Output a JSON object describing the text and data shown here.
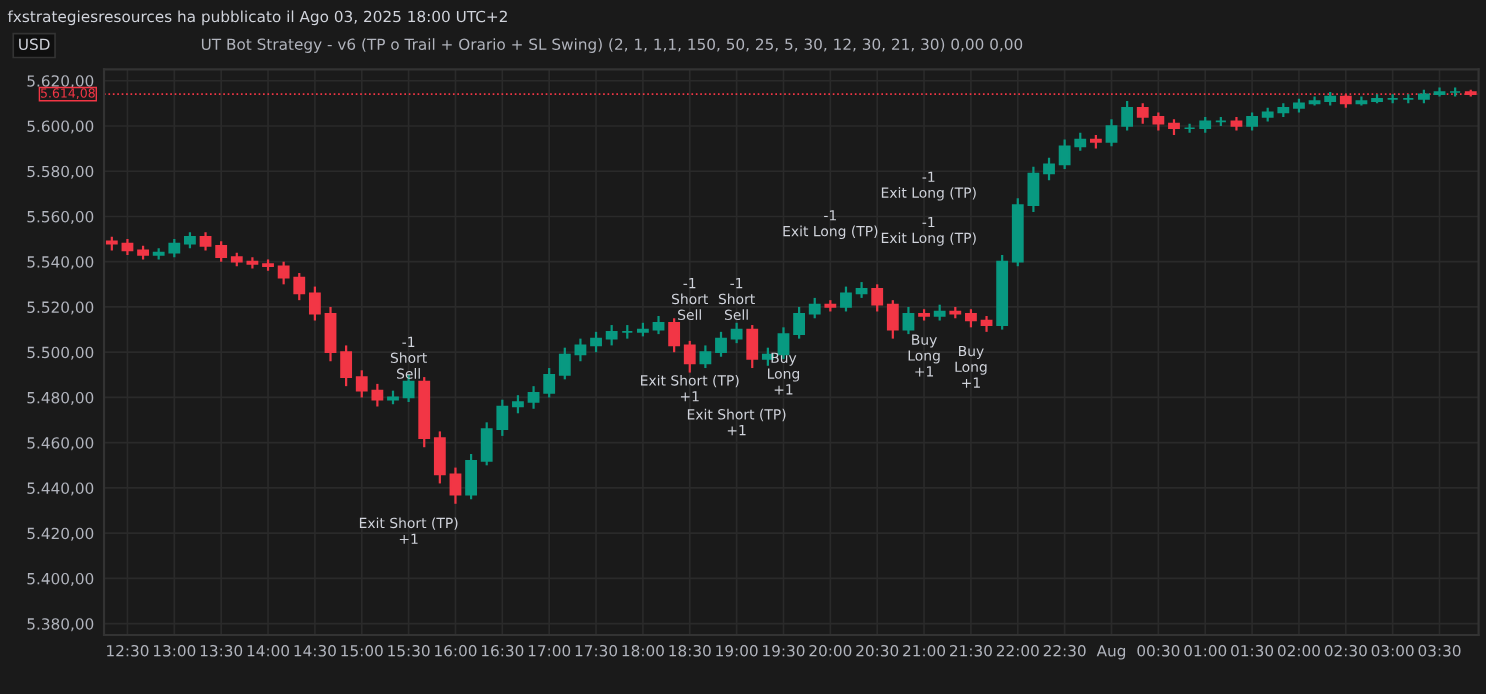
{
  "chart_data": {
    "type": "candlestick",
    "title": "UT Bot Strategy - v6 (TP o Trail + Orario + SL Swing) (2, 1, 1,1, 150, 50, 25, 5, 30, 12, 30, 21, 30) 0,00 0,00",
    "categories": [
      null,
      "12:30",
      null,
      null,
      "13:00",
      null,
      null,
      "13:30",
      null,
      null,
      "14:00",
      null,
      null,
      "14:30",
      null,
      null,
      "15:00",
      null,
      null,
      "15:30",
      null,
      null,
      "16:00",
      null,
      null,
      "16:30",
      null,
      null,
      "17:00",
      null,
      null,
      "17:30",
      null,
      null,
      "18:00",
      null,
      null,
      "18:30",
      null,
      null,
      "19:00",
      null,
      null,
      "19:30",
      null,
      null,
      "20:00",
      null,
      null,
      "20:30",
      null,
      null,
      "21:00",
      null,
      null,
      "21:30",
      null,
      null,
      "22:00",
      null,
      null,
      "22:30",
      null,
      null,
      "Aug",
      null,
      null,
      "00:30",
      null,
      null,
      "01:00",
      null,
      null,
      "01:30",
      null,
      null,
      "02:00",
      null,
      null,
      "02:30",
      null,
      null,
      "03:00",
      null,
      null,
      "03:30",
      null,
      null
    ],
    "ohlc": [
      [
        5549,
        5551,
        5545,
        5548
      ],
      [
        5548,
        5550,
        5543,
        5545
      ],
      [
        5545,
        5547,
        5541,
        5543
      ],
      [
        5543,
        5546,
        5541,
        5544
      ],
      [
        5544,
        5550,
        5542,
        5548
      ],
      [
        5548,
        5553,
        5546,
        5551
      ],
      [
        5551,
        5553,
        5545,
        5547
      ],
      [
        5547,
        5549,
        5540,
        5542
      ],
      [
        5542,
        5544,
        5538,
        5540
      ],
      [
        5540,
        5542,
        5537,
        5539
      ],
      [
        5539,
        5541,
        5536,
        5538
      ],
      [
        5538,
        5540,
        5530,
        5533
      ],
      [
        5533,
        5535,
        5523,
        5526
      ],
      [
        5526,
        5529,
        5514,
        5517
      ],
      [
        5517,
        5520,
        5496,
        5500
      ],
      [
        5500,
        5503,
        5485,
        5489
      ],
      [
        5489,
        5492,
        5480,
        5483
      ],
      [
        5483,
        5486,
        5476,
        5479
      ],
      [
        5479,
        5483,
        5477,
        5480
      ],
      [
        5480,
        5490,
        5478,
        5487
      ],
      [
        5487,
        5489,
        5458,
        5462
      ],
      [
        5462,
        5465,
        5442,
        5446
      ],
      [
        5446,
        5449,
        5433,
        5437
      ],
      [
        5437,
        5455,
        5435,
        5452
      ],
      [
        5452,
        5469,
        5450,
        5466
      ],
      [
        5466,
        5479,
        5463,
        5476
      ],
      [
        5476,
        5481,
        5473,
        5478
      ],
      [
        5478,
        5485,
        5475,
        5482
      ],
      [
        5482,
        5493,
        5480,
        5490
      ],
      [
        5490,
        5502,
        5488,
        5499
      ],
      [
        5499,
        5506,
        5496,
        5503
      ],
      [
        5503,
        5509,
        5500,
        5506
      ],
      [
        5506,
        5512,
        5503,
        5509
      ],
      [
        5509,
        5512,
        5506,
        5509
      ],
      [
        5509,
        5513,
        5507,
        5510
      ],
      [
        5510,
        5516,
        5508,
        5513
      ],
      [
        5513,
        5515,
        5500,
        5503
      ],
      [
        5503,
        5505,
        5491,
        5495
      ],
      [
        5495,
        5503,
        5493,
        5500
      ],
      [
        5500,
        5509,
        5498,
        5506
      ],
      [
        5506,
        5513,
        5504,
        5510
      ],
      [
        5510,
        5512,
        5493,
        5497
      ],
      [
        5497,
        5502,
        5494,
        5499
      ],
      [
        5499,
        5511,
        5497,
        5508
      ],
      [
        5508,
        5520,
        5506,
        5517
      ],
      [
        5517,
        5524,
        5515,
        5521
      ],
      [
        5521,
        5523,
        5518,
        5520
      ],
      [
        5520,
        5529,
        5518,
        5526
      ],
      [
        5526,
        5531,
        5524,
        5528
      ],
      [
        5528,
        5530,
        5518,
        5521
      ],
      [
        5521,
        5523,
        5506,
        5510
      ],
      [
        5510,
        5520,
        5508,
        5517
      ],
      [
        5517,
        5519,
        5514,
        5516
      ],
      [
        5516,
        5521,
        5514,
        5518
      ],
      [
        5518,
        5520,
        5515,
        5517
      ],
      [
        5517,
        5519,
        5511,
        5514
      ],
      [
        5514,
        5516,
        5509,
        5512
      ],
      [
        5512,
        5543,
        5510,
        5540
      ],
      [
        5540,
        5568,
        5538,
        5565
      ],
      [
        5565,
        5582,
        5562,
        5579
      ],
      [
        5579,
        5586,
        5576,
        5583
      ],
      [
        5583,
        5594,
        5581,
        5591
      ],
      [
        5591,
        5597,
        5589,
        5594
      ],
      [
        5594,
        5596,
        5590,
        5593
      ],
      [
        5593,
        5603,
        5591,
        5600
      ],
      [
        5600,
        5611,
        5598,
        5608
      ],
      [
        5608,
        5610,
        5601,
        5604
      ],
      [
        5604,
        5606,
        5598,
        5601
      ],
      [
        5601,
        5603,
        5596,
        5599
      ],
      [
        5599,
        5601,
        5597,
        5599
      ],
      [
        5599,
        5604,
        5597,
        5602
      ],
      [
        5602,
        5604,
        5600,
        5602
      ],
      [
        5602,
        5604,
        5598,
        5600
      ],
      [
        5600,
        5606,
        5598,
        5604
      ],
      [
        5604,
        5608,
        5602,
        5606
      ],
      [
        5606,
        5610,
        5604,
        5608
      ],
      [
        5608,
        5612,
        5606,
        5610
      ],
      [
        5610,
        5613,
        5609,
        5611
      ],
      [
        5611,
        5615,
        5609,
        5613
      ],
      [
        5613,
        5614,
        5608,
        5610
      ],
      [
        5610,
        5613,
        5609,
        5611
      ],
      [
        5611,
        5614,
        5610,
        5612
      ],
      [
        5612,
        5614,
        5610,
        5612
      ],
      [
        5612,
        5614,
        5610,
        5612
      ],
      [
        5612,
        5616,
        5610,
        5614
      ],
      [
        5614,
        5617,
        5613,
        5615
      ],
      [
        5615,
        5617,
        5613,
        5615
      ],
      [
        5615,
        5616,
        5613,
        5614.08
      ]
    ],
    "colors": [
      "#f23645",
      "#f23645",
      "#f23645",
      "#089981",
      "#089981",
      "#089981",
      "#f23645",
      "#f23645",
      "#f23645",
      "#f23645",
      "#f23645",
      "#f23645",
      "#f23645",
      "#f23645",
      "#f23645",
      "#f23645",
      "#f23645",
      "#f23645",
      "#089981",
      "#089981",
      "#f23645",
      "#f23645",
      "#f23645",
      "#089981",
      "#089981",
      "#089981",
      "#089981",
      "#089981",
      "#089981",
      "#089981",
      "#089981",
      "#089981",
      "#089981",
      "#089981",
      "#089981",
      "#089981",
      "#f23645",
      "#f23645",
      "#089981",
      "#089981",
      "#089981",
      "#f23645",
      "#089981",
      "#089981",
      "#089981",
      "#089981",
      "#f23645",
      "#089981",
      "#089981",
      "#f23645",
      "#f23645",
      "#089981",
      "#f23645",
      "#089981",
      "#f23645",
      "#f23645",
      "#f23645",
      "#089981",
      "#089981",
      "#089981",
      "#089981",
      "#089981",
      "#089981",
      "#f23645",
      "#089981",
      "#089981",
      "#f23645",
      "#f23645",
      "#f23645",
      "#089981",
      "#089981",
      "#089981",
      "#f23645",
      "#089981",
      "#089981",
      "#089981",
      "#089981",
      "#089981",
      "#089981",
      "#f23645",
      "#089981",
      "#089981",
      "#089981",
      "#089981",
      "#089981",
      "#089981",
      "#089981",
      "#f23645"
    ],
    "ylim": [
      5375,
      5625
    ],
    "yticks": [
      {
        "value": 5380,
        "label": "5.380,00"
      },
      {
        "value": 5400,
        "label": "5.400,00"
      },
      {
        "value": 5420,
        "label": "5.420,00"
      },
      {
        "value": 5440,
        "label": "5.440,00"
      },
      {
        "value": 5460,
        "label": "5.460,00"
      },
      {
        "value": 5480,
        "label": "5.480,00"
      },
      {
        "value": 5500,
        "label": "5.500,00"
      },
      {
        "value": 5520,
        "label": "5.520,00"
      },
      {
        "value": 5540,
        "label": "5.540,00"
      },
      {
        "value": 5560,
        "label": "5.560,00"
      },
      {
        "value": 5580,
        "label": "5.580,00"
      },
      {
        "value": 5600,
        "label": "5.600,00"
      },
      {
        "value": 5620,
        "label": "5.620,00"
      }
    ],
    "ref_lines": [
      {
        "axis": "y",
        "value": 5614.08,
        "label": "5.614,08",
        "color": "#f23645",
        "line_style": "dotted"
      }
    ],
    "grid": true,
    "legend": false,
    "annotations": [
      "fxstrategiesresources ha pubblicato il Ago 03, 2025 18:00 UTC+2",
      "USD",
      "-1",
      "Short",
      "Sell",
      "Exit Short (TP)",
      "+1",
      "-1",
      "Short",
      "Sell",
      "Exit Short (TP)",
      "+1",
      "-1",
      "Short",
      "Sell",
      "Exit Short (TP)",
      "+1",
      "Buy",
      "Long",
      "+1",
      "-1",
      "Exit Long (TP)",
      "Buy",
      "Long",
      "+1",
      "Buy",
      "Long",
      "+1",
      "-1",
      "Exit Long (TP)",
      "-1",
      "Exit Long (TP)"
    ]
  }
}
